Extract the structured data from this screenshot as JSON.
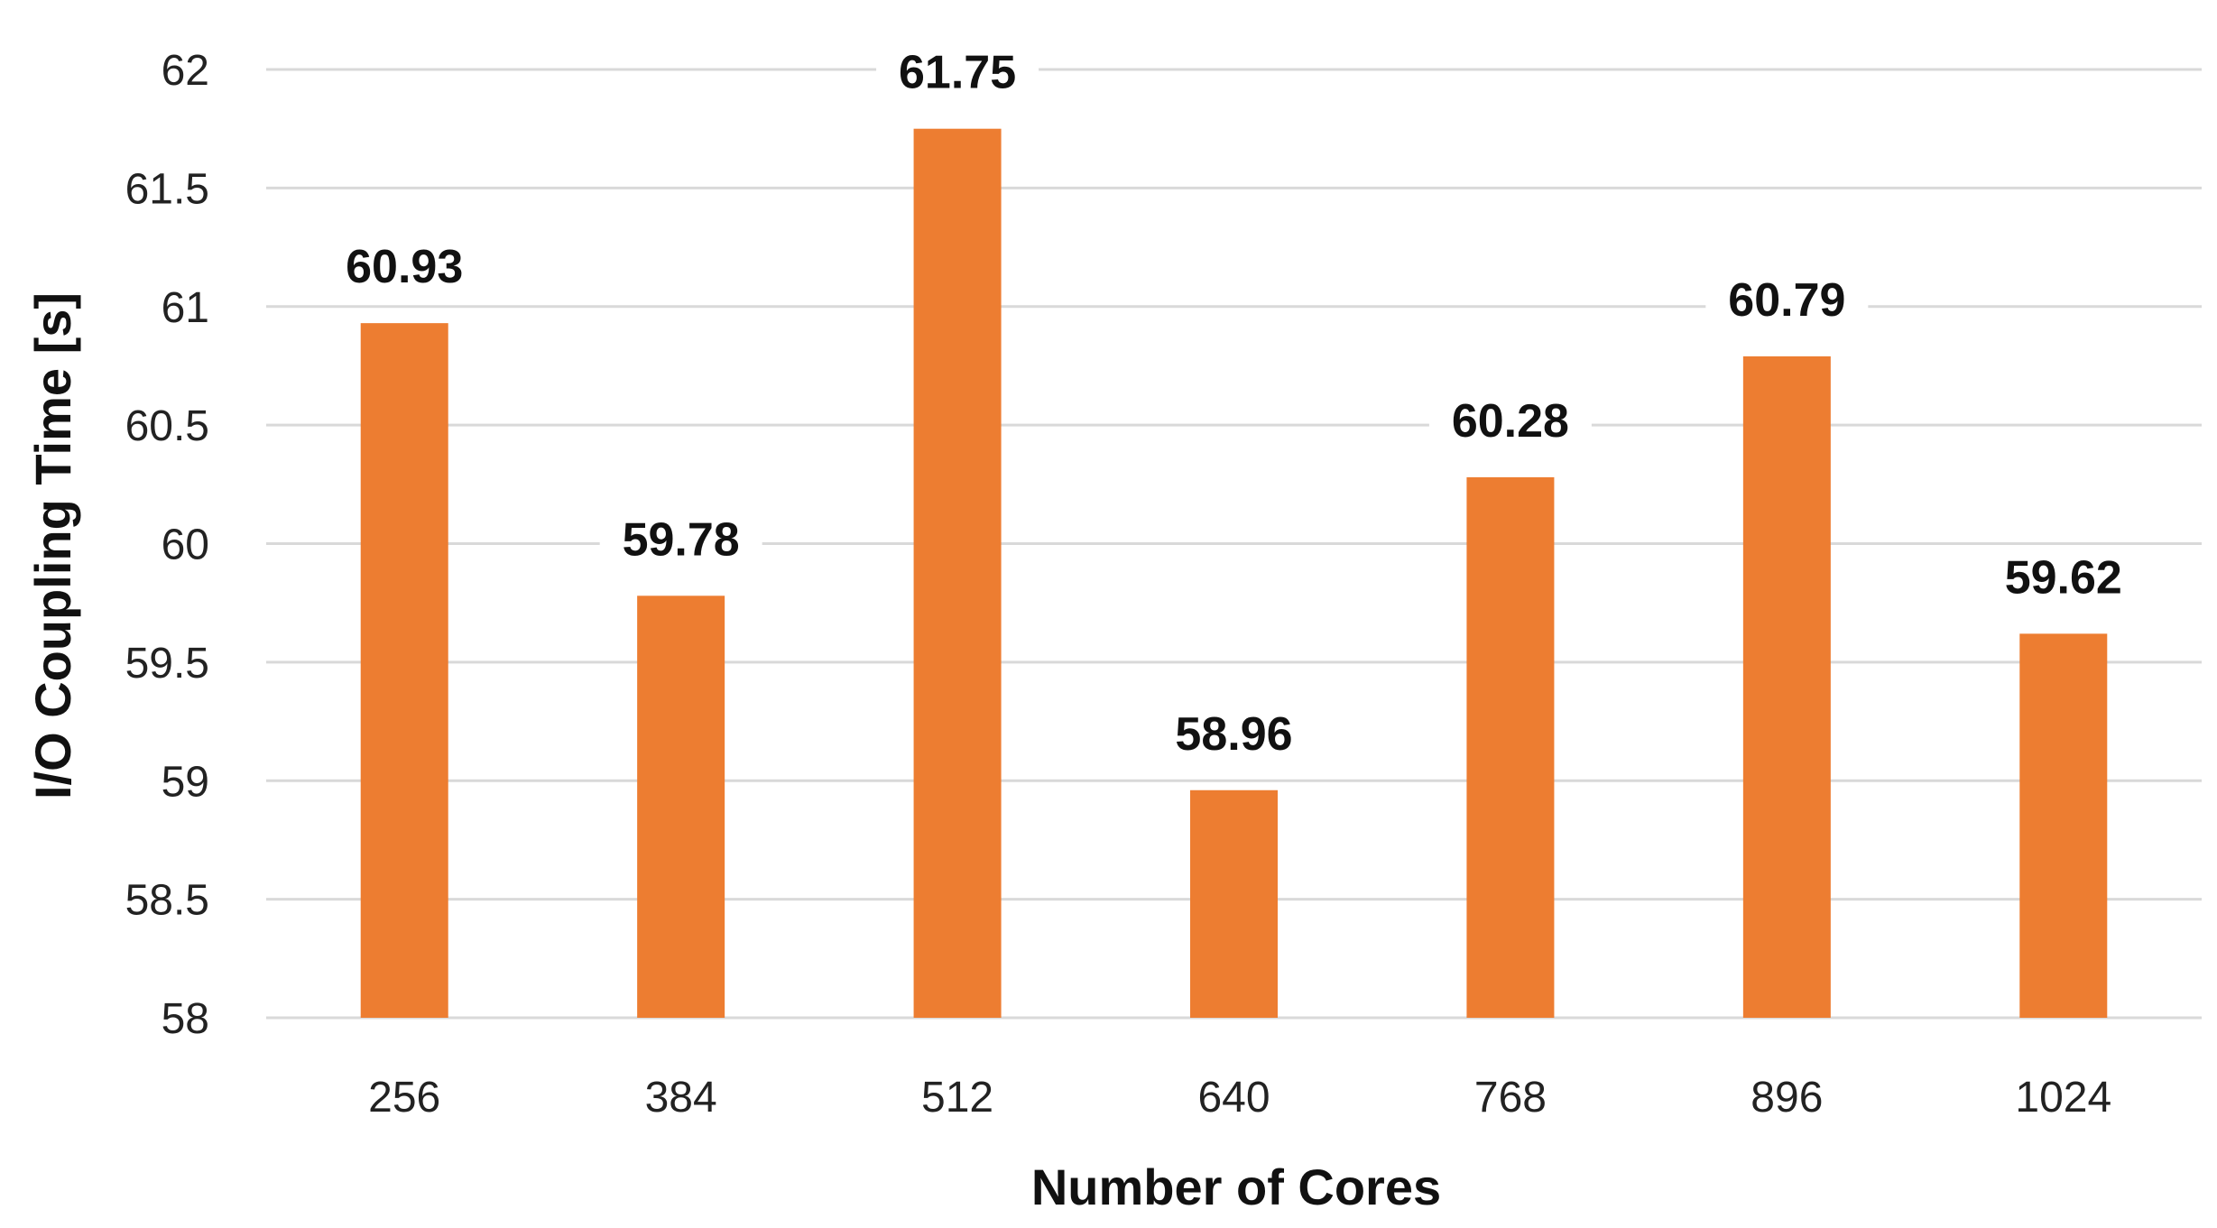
{
  "chart_data": {
    "type": "bar",
    "title": "",
    "xlabel": "Number of Cores",
    "ylabel": "I/O Coupling Time [s]",
    "categories": [
      "256",
      "384",
      "512",
      "640",
      "768",
      "896",
      "1024"
    ],
    "values": [
      60.93,
      59.78,
      61.75,
      58.96,
      60.28,
      60.79,
      59.62
    ],
    "data_labels": [
      "60.93",
      "59.78",
      "61.75",
      "58.96",
      "60.28",
      "60.79",
      "59.62"
    ],
    "ylim": [
      58,
      62
    ],
    "yticks": [
      58,
      58.5,
      59,
      59.5,
      60,
      60.5,
      61,
      61.5,
      62
    ],
    "ytick_labels": [
      "58",
      "58.5",
      "59",
      "59.5",
      "60",
      "60.5",
      "61",
      "61.5",
      "62"
    ],
    "grid": true,
    "legend": "none",
    "bar_color": "#ED7D31",
    "grid_color": "#D9D9D9"
  }
}
